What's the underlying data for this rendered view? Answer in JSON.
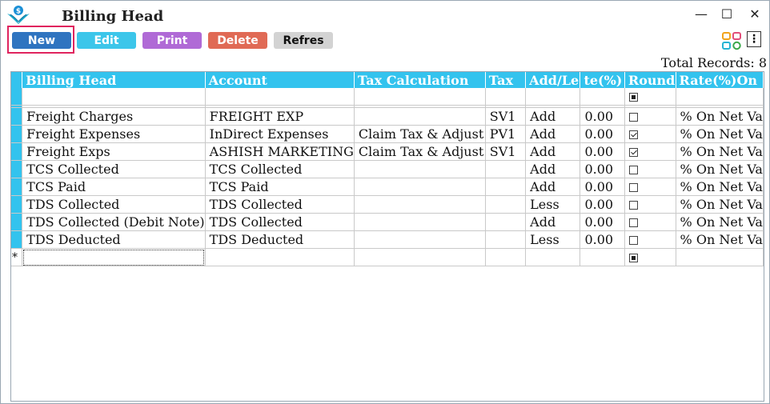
{
  "window": {
    "title": "Billing Head"
  },
  "controls": {
    "minimize": "—",
    "maximize": "☐",
    "close": "✕"
  },
  "toolbar": {
    "new": "New",
    "edit": "Edit",
    "print": "Print",
    "delete": "Delete",
    "refresh": "Refres",
    "new_color": "#2f74c0",
    "edit_color": "#3cc6ea",
    "print_color": "#b06ad6",
    "delete_color": "#e06a55",
    "refresh_color": "#d3d3d3",
    "more": "⋮"
  },
  "summary": {
    "total_records": "Total Records: 8"
  },
  "grid": {
    "header_color": "#33c3ee",
    "columns": [
      "Billing Head",
      "Account",
      "Tax Calculation",
      "Tax",
      "Add/Le",
      "te(%)",
      "Round",
      "Rate(%)On"
    ],
    "rows": [
      {
        "head": "Freight Charges",
        "account": "FREIGHT EXP",
        "taxcalc": "",
        "tax": "SV1",
        "addless": "Add",
        "rate": "0.00",
        "round": false,
        "rateon": "% On Net Va"
      },
      {
        "head": "Freight Expenses",
        "account": "InDirect Expenses",
        "taxcalc": "Claim Tax & Adjust",
        "tax": "PV1",
        "addless": "Add",
        "rate": "0.00",
        "round": true,
        "rateon": "% On Net Va"
      },
      {
        "head": "Freight Exps",
        "account": "ASHISH MARKETING",
        "taxcalc": "Claim Tax & Adjust",
        "tax": "SV1",
        "addless": "Add",
        "rate": "0.00",
        "round": true,
        "rateon": "% On Net Va"
      },
      {
        "head": "TCS Collected",
        "account": "TCS Collected",
        "taxcalc": "",
        "tax": "",
        "addless": "Add",
        "rate": "0.00",
        "round": false,
        "rateon": "% On Net Va"
      },
      {
        "head": "TCS Paid",
        "account": "TCS Paid",
        "taxcalc": "",
        "tax": "",
        "addless": "Add",
        "rate": "0.00",
        "round": false,
        "rateon": "% On Net Va"
      },
      {
        "head": "TDS Collected",
        "account": "TDS Collected",
        "taxcalc": "",
        "tax": "",
        "addless": "Less",
        "rate": "0.00",
        "round": false,
        "rateon": "% On Net Va"
      },
      {
        "head": "TDS Collected (Debit Note)",
        "account": "TDS Collected",
        "taxcalc": "",
        "tax": "",
        "addless": "Add",
        "rate": "0.00",
        "round": false,
        "rateon": "% On Net Va"
      },
      {
        "head": "TDS Deducted",
        "account": "TDS Deducted",
        "taxcalc": "",
        "tax": "",
        "addless": "Less",
        "rate": "0.00",
        "round": false,
        "rateon": "% On Net Va"
      }
    ],
    "new_row_marker": "*"
  }
}
